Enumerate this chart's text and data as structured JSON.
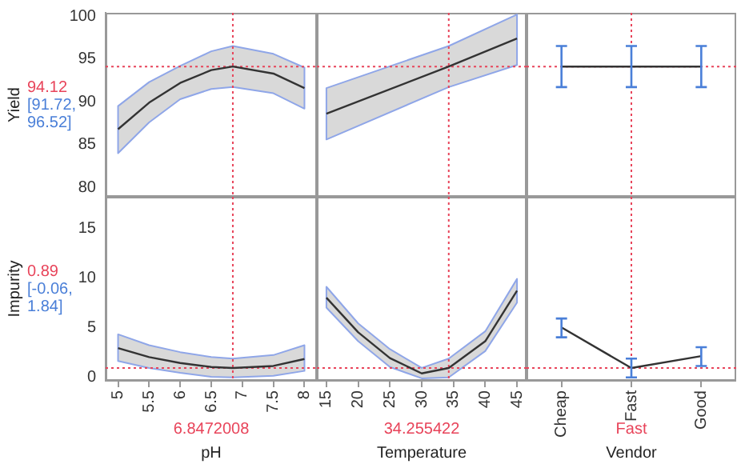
{
  "chart_data": [
    {
      "type": "line",
      "ylabel": "Yield",
      "x": [
        5,
        5.5,
        6,
        6.5,
        6.8472008,
        7.5,
        8
      ],
      "xlim": [
        4.8,
        8.2
      ],
      "xticks": [
        5,
        5.5,
        6,
        6.5,
        7,
        7.5,
        8
      ],
      "ylim": [
        78.9,
        100.4
      ],
      "yticks": [
        80,
        85,
        90,
        95,
        100
      ],
      "tick_labels": "y",
      "grid": false,
      "legend": false,
      "marker": "none",
      "series": [
        {
          "color": "#333333",
          "values": [
            86.8,
            89.9,
            92.2,
            93.7,
            94.12,
            93.3,
            91.6
          ],
          "lower": [
            84,
            87.6,
            90.3,
            91.5,
            91.72,
            91,
            89.2
          ],
          "upper": [
            89.5,
            92.3,
            94.2,
            95.9,
            96.52,
            95.6,
            94
          ]
        }
      ],
      "ref_lines": [
        {
          "axis": "x",
          "value": 6.8472008,
          "color": "#e8445a",
          "line_style": "dotted"
        },
        {
          "axis": "y",
          "value": 94.12,
          "label": "94.12",
          "color": "#e8445a",
          "line_style": "dotted"
        }
      ],
      "annotations": [
        "[91.72, 96.52]"
      ]
    },
    {
      "type": "line",
      "x": [
        15,
        34.255422,
        45
      ],
      "xlim": [
        13.5,
        46.5
      ],
      "xticks": [
        15,
        20,
        25,
        30,
        35,
        40,
        45
      ],
      "ylim": [
        78.9,
        100.4
      ],
      "yticks": [
        80,
        85,
        90,
        95,
        100
      ],
      "tick_labels": false,
      "grid": false,
      "legend": false,
      "marker": "none",
      "series": [
        {
          "color": "#333333",
          "values": [
            88.6,
            94.12,
            97.4
          ],
          "lower": [
            85.6,
            91.72,
            94.3
          ],
          "upper": [
            91.6,
            96.52,
            100.2
          ]
        }
      ],
      "ref_lines": [
        {
          "axis": "x",
          "value": 34.255422,
          "color": "#e8445a",
          "line_style": "dotted"
        },
        {
          "axis": "y",
          "value": 94.12,
          "color": "#e8445a",
          "line_style": "dotted"
        }
      ]
    },
    {
      "type": "line",
      "categories": [
        "Cheap",
        "Fast",
        "Good"
      ],
      "ylim": [
        78.9,
        100.4
      ],
      "yticks": [
        80,
        85,
        90,
        95,
        100
      ],
      "tick_labels": false,
      "grid": false,
      "legend": false,
      "marker": "none",
      "series": [
        {
          "color": "#333333",
          "values": [
            94.12,
            94.12,
            94.12
          ],
          "errors": [
            [
              91.72,
              96.52
            ],
            [
              91.72,
              96.52
            ],
            [
              91.72,
              96.52
            ]
          ]
        }
      ],
      "ref_lines": [
        {
          "axis": "x",
          "value": "Fast",
          "color": "#e8445a",
          "line_style": "dotted"
        },
        {
          "axis": "y",
          "value": 94.12,
          "color": "#e8445a",
          "line_style": "dotted"
        }
      ]
    },
    {
      "type": "line",
      "ylabel": "Impurity",
      "xlabel": "pH",
      "x": [
        5,
        5.5,
        6,
        6.5,
        6.8472008,
        7.5,
        8
      ],
      "xlim": [
        4.8,
        8.2
      ],
      "xticks": [
        5,
        5.5,
        6,
        6.5,
        7,
        7.5,
        8
      ],
      "ylim": [
        -0.4,
        18.2
      ],
      "yticks": [
        0,
        5,
        10,
        15
      ],
      "grid": false,
      "legend": false,
      "marker": "none",
      "series": [
        {
          "color": "#333333",
          "values": [
            2.9,
            2,
            1.4,
            1,
            0.89,
            1.1,
            1.8
          ],
          "lower": [
            1.6,
            0.9,
            0.4,
            0,
            -0.06,
            0.1,
            0.6
          ],
          "upper": [
            4.3,
            3.2,
            2.5,
            2,
            1.84,
            2.2,
            3.2
          ]
        }
      ],
      "ref_lines": [
        {
          "axis": "x",
          "value": 6.8472008,
          "label": "6.8472008",
          "color": "#e8445a",
          "line_style": "dotted"
        },
        {
          "axis": "y",
          "value": 0.89,
          "label": "0.89",
          "color": "#e8445a",
          "line_style": "dotted"
        }
      ],
      "annotations": [
        "[-0.06, 1.84]"
      ]
    },
    {
      "type": "line",
      "xlabel": "Temperature",
      "x": [
        15,
        20,
        25,
        30,
        34.255422,
        40,
        45
      ],
      "xlim": [
        13.5,
        46.5
      ],
      "xticks": [
        15,
        20,
        25,
        30,
        35,
        40,
        45
      ],
      "ylim": [
        -0.4,
        18.2
      ],
      "yticks": [
        0,
        5,
        10,
        15
      ],
      "tick_labels": "x",
      "grid": false,
      "legend": false,
      "marker": "none",
      "series": [
        {
          "color": "#333333",
          "values": [
            8,
            4.5,
            1.9,
            0.35,
            0.89,
            3.6,
            8.7
          ],
          "lower": [
            7,
            3.6,
            1,
            -0.15,
            -0.06,
            2.6,
            7.5
          ],
          "upper": [
            9.1,
            5.4,
            2.8,
            0.9,
            1.84,
            4.6,
            9.9
          ]
        }
      ],
      "ref_lines": [
        {
          "axis": "x",
          "value": 34.255422,
          "label": "34.255422",
          "color": "#e8445a",
          "line_style": "dotted"
        },
        {
          "axis": "y",
          "value": 0.89,
          "color": "#e8445a",
          "line_style": "dotted"
        }
      ]
    },
    {
      "type": "line",
      "xlabel": "Vendor",
      "categories": [
        "Cheap",
        "Fast",
        "Good"
      ],
      "ylim": [
        -0.4,
        18.2
      ],
      "yticks": [
        0,
        5,
        10,
        15
      ],
      "tick_labels": "x",
      "grid": false,
      "legend": false,
      "marker": "none",
      "series": [
        {
          "color": "#333333",
          "values": [
            5,
            0.89,
            2.1
          ],
          "errors": [
            [
              4,
              5.9
            ],
            [
              -0.06,
              1.84
            ],
            [
              1.1,
              3
            ]
          ]
        }
      ],
      "ref_lines": [
        {
          "axis": "x",
          "value": "Fast",
          "label": "Fast",
          "color": "#e8445a",
          "line_style": "dotted"
        },
        {
          "axis": "y",
          "value": 0.89,
          "color": "#e8445a",
          "line_style": "dotted"
        }
      ]
    }
  ]
}
